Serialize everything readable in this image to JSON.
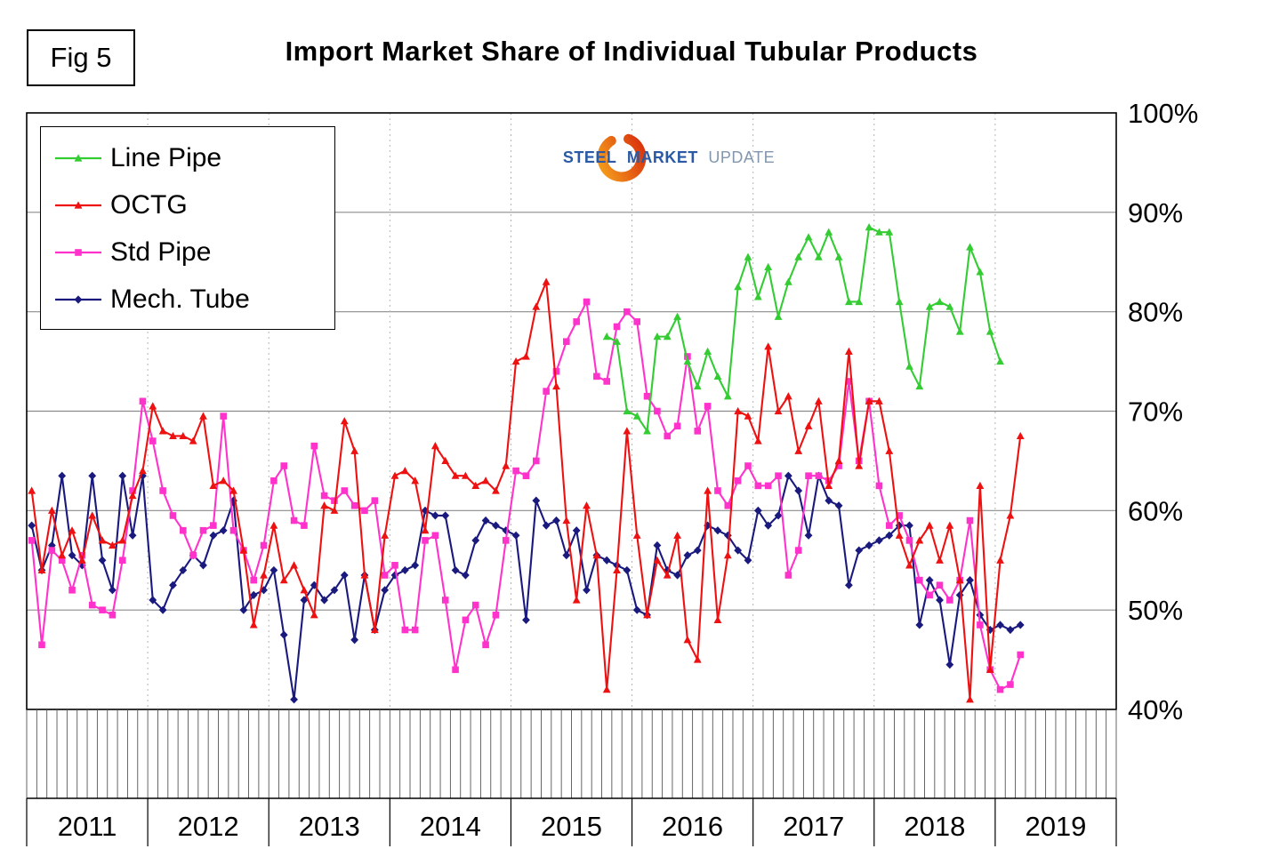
{
  "figure_label": "Fig 5",
  "title": "Import Market Share of Individual Tubular Products",
  "logo": {
    "steel": "STEEL",
    "market": "MARKET",
    "update": "UPDATE",
    "swirl_color_start": "#f6a21d",
    "swirl_color_end": "#d82c0b"
  },
  "chart_data": {
    "type": "line",
    "title": "Import Market Share of Individual Tubular Products",
    "y_axis": {
      "min": 40,
      "max": 100,
      "unit": "%",
      "side": "right",
      "tick_labels": [
        "100%",
        "90%",
        "80%",
        "70%",
        "60%",
        "50%",
        "40%"
      ]
    },
    "x_axis": {
      "tick_interval": "month",
      "year_labels": [
        "2011",
        "2012",
        "2013",
        "2014",
        "2015",
        "2016",
        "2017",
        "2018",
        "2019"
      ]
    },
    "grid": {
      "horizontal": true,
      "vertical_year_dashed": true
    },
    "legend_position": "top-left",
    "months": [
      "2011-01",
      "2011-02",
      "2011-03",
      "2011-04",
      "2011-05",
      "2011-06",
      "2011-07",
      "2011-08",
      "2011-09",
      "2011-10",
      "2011-11",
      "2011-12",
      "2012-01",
      "2012-02",
      "2012-03",
      "2012-04",
      "2012-05",
      "2012-06",
      "2012-07",
      "2012-08",
      "2012-09",
      "2012-10",
      "2012-11",
      "2012-12",
      "2013-01",
      "2013-02",
      "2013-03",
      "2013-04",
      "2013-05",
      "2013-06",
      "2013-07",
      "2013-08",
      "2013-09",
      "2013-10",
      "2013-11",
      "2013-12",
      "2014-01",
      "2014-02",
      "2014-03",
      "2014-04",
      "2014-05",
      "2014-06",
      "2014-07",
      "2014-08",
      "2014-09",
      "2014-10",
      "2014-11",
      "2014-12",
      "2015-01",
      "2015-02",
      "2015-03",
      "2015-04",
      "2015-05",
      "2015-06",
      "2015-07",
      "2015-08",
      "2015-09",
      "2015-10",
      "2015-11",
      "2015-12",
      "2016-01",
      "2016-02",
      "2016-03",
      "2016-04",
      "2016-05",
      "2016-06",
      "2016-07",
      "2016-08",
      "2016-09",
      "2016-10",
      "2016-11",
      "2016-12",
      "2017-01",
      "2017-02",
      "2017-03",
      "2017-04",
      "2017-05",
      "2017-06",
      "2017-07",
      "2017-08",
      "2017-09",
      "2017-10",
      "2017-11",
      "2017-12",
      "2018-01",
      "2018-02",
      "2018-03",
      "2018-04",
      "2018-05",
      "2018-06",
      "2018-07",
      "2018-08",
      "2018-09",
      "2018-10",
      "2018-11",
      "2018-12",
      "2019-01",
      "2019-02",
      "2019-03"
    ],
    "series": [
      {
        "name": "Mech. Tube",
        "color": "#1a1a7e",
        "marker": "diamond",
        "values": [
          58.5,
          54,
          56.5,
          63.5,
          55.5,
          54.5,
          63.5,
          55,
          52,
          63.5,
          57.5,
          63.5,
          51,
          50,
          52.5,
          54,
          55.5,
          54.5,
          57.5,
          58,
          61,
          50,
          51.5,
          52,
          54,
          47.5,
          41,
          51,
          52.5,
          51,
          52,
          53.5,
          47,
          53.5,
          48,
          52,
          53.5,
          54,
          54.5,
          60,
          59.5,
          59.5,
          54,
          53.5,
          57,
          59,
          58.5,
          58,
          57.5,
          49,
          61,
          58.5,
          59,
          55.5,
          58,
          52,
          55.5,
          55,
          54.5,
          54,
          50,
          49.5,
          56.5,
          54,
          53.5,
          55.5,
          56,
          58.5,
          58,
          57.5,
          56,
          55,
          60,
          58.5,
          59.5,
          63.5,
          62,
          57.5,
          63.5,
          61,
          60.5,
          52.5,
          56,
          56.5,
          57,
          57.5,
          58.5,
          58.5,
          48.5,
          53,
          51,
          44.5,
          51.5,
          53,
          49.5,
          48,
          48.5,
          48,
          48.5
        ]
      },
      {
        "name": "Std Pipe",
        "color": "#ff33cc",
        "marker": "square",
        "values": [
          57,
          46.5,
          56,
          55,
          52,
          55.5,
          50.5,
          50,
          49.5,
          55,
          62,
          71,
          67,
          62,
          59.5,
          58,
          55.5,
          58,
          58.5,
          69.5,
          58,
          56,
          53,
          56.5,
          63,
          64.5,
          59,
          58.5,
          66.5,
          61.5,
          61,
          62,
          60.5,
          60,
          61,
          53.5,
          54.5,
          48,
          48,
          57,
          57.5,
          51,
          44,
          49,
          50.5,
          46.5,
          49.5,
          57,
          64,
          63.5,
          65,
          72,
          74,
          77,
          79,
          81,
          73.5,
          73,
          78.5,
          80,
          79,
          71.5,
          70,
          67.5,
          68.5,
          75.5,
          68,
          70.5,
          62,
          60.5,
          63,
          64.5,
          62.5,
          62.5,
          63.5,
          53.5,
          56,
          63.5,
          63.5,
          63,
          64.5,
          73,
          65,
          71,
          62.5,
          58.5,
          59.5,
          57,
          53,
          51.5,
          52.5,
          51,
          53,
          59,
          48.5,
          44,
          42,
          42.5,
          45.5
        ]
      },
      {
        "name": "OCTG",
        "color": "#ee1111",
        "marker": "triangle",
        "values": [
          62,
          54,
          60,
          55.5,
          58,
          55,
          59.5,
          57,
          56.5,
          57,
          61.5,
          64,
          70.5,
          68,
          67.5,
          67.5,
          67,
          69.5,
          62.5,
          63,
          62,
          56,
          48.5,
          53.5,
          58.5,
          53,
          54.5,
          52,
          49.5,
          60.5,
          60,
          69,
          66,
          53.5,
          48,
          57.5,
          63.5,
          64,
          63,
          58,
          66.5,
          65,
          63.5,
          63.5,
          62.5,
          63,
          62,
          64.5,
          75,
          75.5,
          80.5,
          83,
          72.5,
          59,
          51,
          60.5,
          55.5,
          42,
          54,
          68,
          57.5,
          49.5,
          55,
          53.5,
          57.5,
          47,
          45,
          62,
          49,
          55.5,
          70,
          69.5,
          67,
          76.5,
          70,
          71.5,
          66,
          68.5,
          71,
          62.5,
          65,
          76,
          64.5,
          71,
          71,
          66,
          57.5,
          54.5,
          57,
          58.5,
          55,
          58.5,
          53,
          41,
          62.5,
          44,
          55,
          59.5,
          67.5
        ]
      },
      {
        "name": "Line Pipe",
        "color": "#33cc33",
        "marker": "triangle",
        "values": [
          null,
          null,
          null,
          null,
          null,
          null,
          null,
          null,
          null,
          null,
          null,
          null,
          null,
          null,
          null,
          null,
          null,
          null,
          null,
          null,
          null,
          null,
          null,
          null,
          null,
          null,
          null,
          null,
          null,
          null,
          null,
          null,
          null,
          null,
          null,
          null,
          null,
          null,
          null,
          null,
          null,
          null,
          null,
          null,
          null,
          null,
          null,
          null,
          null,
          null,
          null,
          null,
          null,
          null,
          null,
          null,
          null,
          77.5,
          77,
          70,
          69.5,
          68,
          77.5,
          77.5,
          79.5,
          75,
          72.5,
          76,
          73.5,
          71.5,
          82.5,
          85.5,
          81.5,
          84.5,
          79.5,
          83,
          85.5,
          87.5,
          85.5,
          88,
          85.5,
          81,
          81,
          88.5,
          88,
          88,
          81,
          74.5,
          72.5,
          80.5,
          81,
          80.5,
          78,
          86.5,
          84,
          78,
          75,
          null,
          null
        ]
      }
    ],
    "legend_order": [
      "Line Pipe",
      "OCTG",
      "Std Pipe",
      "Mech. Tube"
    ]
  }
}
